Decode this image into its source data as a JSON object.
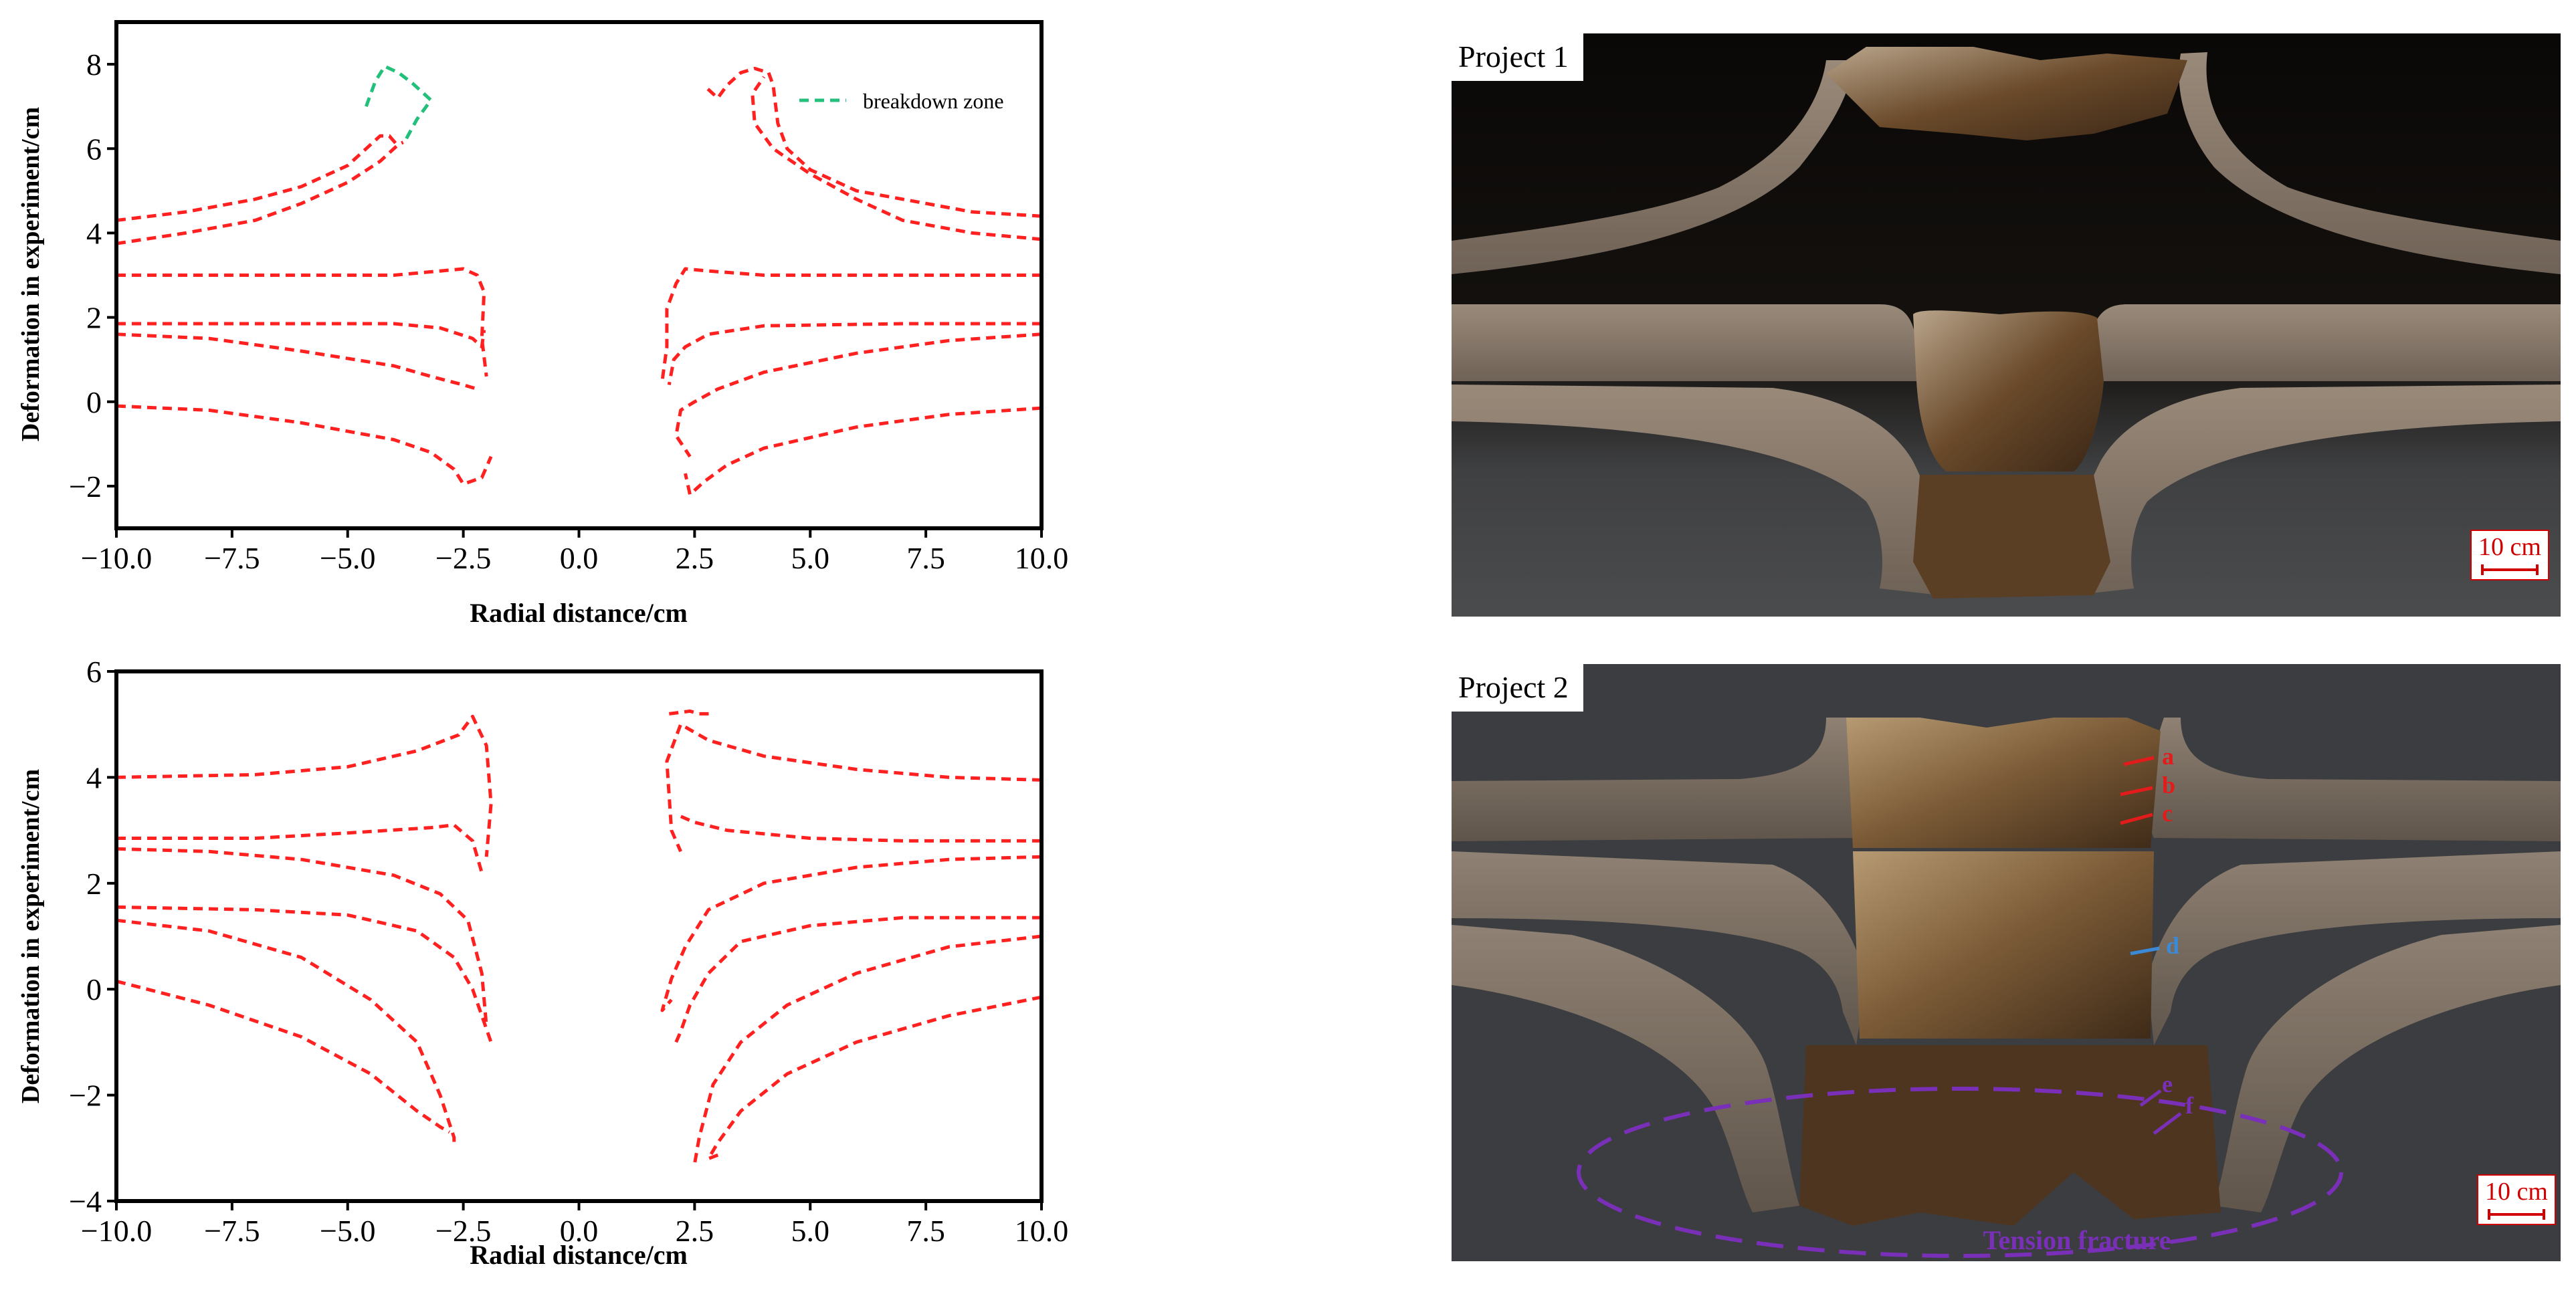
{
  "chart_data": [
    {
      "type": "line",
      "xlabel": "Radial distance/cm",
      "ylabel": "Deformation in experiment/cm",
      "xlim": [
        -10,
        10
      ],
      "ylim": [
        -3,
        9
      ],
      "xticks": [
        "−10.0",
        "−7.5",
        "−5.0",
        "−2.5",
        "0.0",
        "2.5",
        "5.0",
        "7.5",
        "10.0"
      ],
      "xtick_values": [
        -10,
        -7.5,
        -5,
        -2.5,
        0,
        2.5,
        5,
        7.5,
        10
      ],
      "yticks": [
        "−2",
        "0",
        "2",
        "4",
        "6",
        "8"
      ],
      "ytick_values": [
        -2,
        0,
        2,
        4,
        6,
        8
      ],
      "grid": false,
      "legend_position": "top-right",
      "line_color": "#ff2020",
      "series": [
        {
          "points": [
            [
              -10,
              4.3
            ],
            [
              -8.5,
              4.5
            ],
            [
              -7,
              4.8
            ],
            [
              -6,
              5.1
            ],
            [
              -5,
              5.6
            ],
            [
              -4.6,
              6.0
            ],
            [
              -4.3,
              6.3
            ],
            [
              -4.1,
              6.3
            ],
            [
              -3.9,
              6.05
            ]
          ]
        },
        {
          "points": [
            [
              -10,
              3.75
            ],
            [
              -8.5,
              4.0
            ],
            [
              -7,
              4.3
            ],
            [
              -6,
              4.7
            ],
            [
              -5,
              5.2
            ],
            [
              -4.3,
              5.7
            ],
            [
              -3.9,
              6.1
            ],
            [
              -3.8,
              6.15
            ]
          ]
        },
        {
          "points": [
            [
              -10,
              3.0
            ],
            [
              -7,
              3.0
            ],
            [
              -4,
              3.0
            ],
            [
              -3,
              3.1
            ],
            [
              -2.5,
              3.15
            ],
            [
              -2.2,
              3.0
            ],
            [
              -2.05,
              2.6
            ],
            [
              -2.1,
              1.5
            ],
            [
              -2.0,
              0.6
            ]
          ]
        },
        {
          "points": [
            [
              -10,
              1.85
            ],
            [
              -7,
              1.85
            ],
            [
              -4,
              1.85
            ],
            [
              -3,
              1.75
            ],
            [
              -2.3,
              1.5
            ],
            [
              -2.1,
              1.3
            ],
            [
              -2.05,
              1.7
            ]
          ]
        },
        {
          "points": [
            [
              -10,
              1.6
            ],
            [
              -8,
              1.5
            ],
            [
              -6,
              1.2
            ],
            [
              -4,
              0.85
            ],
            [
              -3.2,
              0.6
            ],
            [
              -2.5,
              0.4
            ],
            [
              -2.2,
              0.3
            ]
          ]
        },
        {
          "points": [
            [
              -10,
              -0.1
            ],
            [
              -8,
              -0.2
            ],
            [
              -6,
              -0.5
            ],
            [
              -4,
              -0.9
            ],
            [
              -3.2,
              -1.2
            ],
            [
              -2.7,
              -1.6
            ],
            [
              -2.5,
              -1.95
            ],
            [
              -2.1,
              -1.8
            ],
            [
              -1.9,
              -1.3
            ]
          ]
        },
        {
          "points": [
            [
              10,
              4.4
            ],
            [
              8.5,
              4.5
            ],
            [
              7,
              4.8
            ],
            [
              6,
              5.0
            ],
            [
              5,
              5.5
            ],
            [
              4.5,
              6.0
            ],
            [
              4.3,
              6.6
            ],
            [
              4.2,
              7.5
            ],
            [
              4.1,
              7.8
            ],
            [
              3.8,
              7.9
            ],
            [
              3.5,
              7.8
            ],
            [
              3.2,
              7.5
            ],
            [
              3.0,
              7.2
            ],
            [
              2.7,
              7.5
            ]
          ]
        },
        {
          "points": [
            [
              10,
              3.85
            ],
            [
              8.5,
              4.0
            ],
            [
              7,
              4.3
            ],
            [
              6,
              4.8
            ],
            [
              5,
              5.4
            ],
            [
              4.2,
              6.0
            ],
            [
              3.8,
              6.6
            ],
            [
              3.75,
              7.3
            ],
            [
              4.0,
              7.7
            ]
          ]
        },
        {
          "points": [
            [
              10,
              3.0
            ],
            [
              7,
              3.0
            ],
            [
              4,
              3.0
            ],
            [
              2.8,
              3.1
            ],
            [
              2.3,
              3.15
            ],
            [
              2.1,
              2.8
            ],
            [
              1.9,
              2.2
            ],
            [
              1.9,
              1.3
            ],
            [
              1.8,
              0.5
            ]
          ]
        },
        {
          "points": [
            [
              10,
              1.85
            ],
            [
              7,
              1.85
            ],
            [
              4,
              1.8
            ],
            [
              2.8,
              1.6
            ],
            [
              2.3,
              1.3
            ],
            [
              2.05,
              1.0
            ],
            [
              1.95,
              0.4
            ]
          ]
        },
        {
          "points": [
            [
              10,
              1.6
            ],
            [
              8,
              1.45
            ],
            [
              6,
              1.15
            ],
            [
              4,
              0.7
            ],
            [
              3.0,
              0.3
            ],
            [
              2.5,
              0.0
            ],
            [
              2.2,
              -0.2
            ],
            [
              2.1,
              -0.8
            ],
            [
              2.4,
              -1.3
            ]
          ]
        },
        {
          "points": [
            [
              10,
              -0.15
            ],
            [
              8,
              -0.3
            ],
            [
              6,
              -0.6
            ],
            [
              4,
              -1.1
            ],
            [
              3.2,
              -1.5
            ],
            [
              2.7,
              -1.9
            ],
            [
              2.4,
              -2.2
            ],
            [
              2.3,
              -1.7
            ]
          ]
        }
      ],
      "breakdown_series": {
        "name": "breakdown zone",
        "color": "#22c07a",
        "points": [
          [
            -4.6,
            7.0
          ],
          [
            -4.4,
            7.6
          ],
          [
            -4.2,
            7.95
          ],
          [
            -3.9,
            7.8
          ],
          [
            -3.6,
            7.55
          ],
          [
            -3.3,
            7.25
          ],
          [
            -3.2,
            7.15
          ],
          [
            -3.5,
            6.7
          ],
          [
            -3.75,
            6.2
          ],
          [
            -3.8,
            6.15
          ]
        ]
      }
    },
    {
      "type": "line",
      "xlabel": "Radial distance/cm",
      "ylabel": "Deformation in experiment/cm",
      "xlim": [
        -10,
        10
      ],
      "ylim": [
        -4,
        6
      ],
      "xticks": [
        "−10.0",
        "−7.5",
        "−5.0",
        "−2.5",
        "0.0",
        "2.5",
        "5.0",
        "7.5",
        "10.0"
      ],
      "xtick_values": [
        -10,
        -7.5,
        -5,
        -2.5,
        0,
        2.5,
        5,
        7.5,
        10
      ],
      "yticks": [
        "−4",
        "−2",
        "0",
        "2",
        "4",
        "6"
      ],
      "ytick_values": [
        -4,
        -2,
        0,
        2,
        4,
        6
      ],
      "grid": false,
      "line_color": "#ff2020",
      "series": [
        {
          "points": [
            [
              -10,
              4.0
            ],
            [
              -7,
              4.05
            ],
            [
              -5,
              4.2
            ],
            [
              -3.5,
              4.5
            ],
            [
              -2.6,
              4.8
            ],
            [
              -2.3,
              5.15
            ],
            [
              -2.0,
              4.6
            ],
            [
              -1.9,
              3.5
            ],
            [
              -2.0,
              2.5
            ]
          ]
        },
        {
          "points": [
            [
              -10,
              2.85
            ],
            [
              -7,
              2.85
            ],
            [
              -5,
              2.95
            ],
            [
              -3.2,
              3.05
            ],
            [
              -2.7,
              3.1
            ],
            [
              -2.3,
              2.8
            ],
            [
              -2.1,
              2.2
            ]
          ]
        },
        {
          "points": [
            [
              -10,
              2.65
            ],
            [
              -8,
              2.6
            ],
            [
              -6,
              2.45
            ],
            [
              -4,
              2.15
            ],
            [
              -3.0,
              1.8
            ],
            [
              -2.4,
              1.3
            ],
            [
              -2.1,
              0.3
            ],
            [
              -2.0,
              -0.7
            ]
          ]
        },
        {
          "points": [
            [
              -10,
              1.55
            ],
            [
              -7,
              1.5
            ],
            [
              -5,
              1.4
            ],
            [
              -3.5,
              1.1
            ],
            [
              -2.7,
              0.6
            ],
            [
              -2.3,
              0.0
            ],
            [
              -1.9,
              -1.0
            ]
          ]
        },
        {
          "points": [
            [
              -10,
              1.3
            ],
            [
              -8,
              1.1
            ],
            [
              -6,
              0.6
            ],
            [
              -4.5,
              -0.2
            ],
            [
              -3.5,
              -1.0
            ],
            [
              -3.0,
              -2.0
            ],
            [
              -2.7,
              -2.8
            ],
            [
              -2.7,
              -2.95
            ]
          ]
        },
        {
          "points": [
            [
              -10,
              0.15
            ],
            [
              -8,
              -0.3
            ],
            [
              -6,
              -0.9
            ],
            [
              -4.5,
              -1.6
            ],
            [
              -3.5,
              -2.3
            ],
            [
              -3.0,
              -2.6
            ],
            [
              -2.8,
              -2.7
            ]
          ]
        },
        {
          "points": [
            [
              10,
              3.95
            ],
            [
              8,
              4.0
            ],
            [
              6,
              4.15
            ],
            [
              4,
              4.4
            ],
            [
              2.8,
              4.7
            ],
            [
              2.2,
              5.0
            ],
            [
              1.9,
              4.3
            ],
            [
              2.0,
              3.0
            ],
            [
              2.2,
              2.6
            ]
          ]
        },
        {
          "points": [
            [
              1.95,
              5.2
            ],
            [
              2.4,
              5.25
            ],
            [
              2.6,
              5.2
            ],
            [
              2.9,
              5.2
            ]
          ]
        },
        {
          "points": [
            [
              10,
              2.8
            ],
            [
              7,
              2.8
            ],
            [
              5,
              2.85
            ],
            [
              3.2,
              3.0
            ],
            [
              2.5,
              3.15
            ],
            [
              2.1,
              3.3
            ]
          ]
        },
        {
          "points": [
            [
              10,
              2.5
            ],
            [
              8,
              2.45
            ],
            [
              6,
              2.3
            ],
            [
              4,
              2.0
            ],
            [
              2.8,
              1.5
            ],
            [
              2.3,
              0.8
            ],
            [
              2.0,
              0.2
            ],
            [
              1.8,
              -0.4
            ],
            [
              2.0,
              -0.2
            ]
          ]
        },
        {
          "points": [
            [
              10,
              1.35
            ],
            [
              7,
              1.35
            ],
            [
              5,
              1.2
            ],
            [
              3.5,
              0.9
            ],
            [
              2.8,
              0.3
            ],
            [
              2.4,
              -0.3
            ],
            [
              2.2,
              -0.8
            ],
            [
              2.1,
              -1.0
            ]
          ]
        },
        {
          "points": [
            [
              10,
              1.0
            ],
            [
              8,
              0.8
            ],
            [
              6,
              0.3
            ],
            [
              4.5,
              -0.3
            ],
            [
              3.5,
              -1.0
            ],
            [
              2.9,
              -1.8
            ],
            [
              2.6,
              -2.8
            ],
            [
              2.5,
              -3.3
            ]
          ]
        },
        {
          "points": [
            [
              10,
              -0.15
            ],
            [
              8,
              -0.5
            ],
            [
              6,
              -1.0
            ],
            [
              4.5,
              -1.6
            ],
            [
              3.5,
              -2.3
            ],
            [
              3.0,
              -2.9
            ],
            [
              2.8,
              -3.2
            ],
            [
              3.1,
              -3.1
            ]
          ]
        }
      ]
    }
  ],
  "photos": [
    {
      "label": "Project 1",
      "scale_label": "10 cm"
    },
    {
      "label": "Project 2",
      "scale_label": "10 cm",
      "annotations": {
        "a": "a",
        "b": "b",
        "c": "c",
        "d": "d",
        "e": "e",
        "f": "f",
        "fracture": "Tension fracture"
      }
    }
  ],
  "colors": {
    "red_marker": "#e31b1b",
    "blue_marker": "#3a8ad8",
    "purple_marker": "#7a2fb8",
    "steel": "#8a7868",
    "steel_dark": "#5c4c40",
    "metal": "#6e4a2a"
  }
}
